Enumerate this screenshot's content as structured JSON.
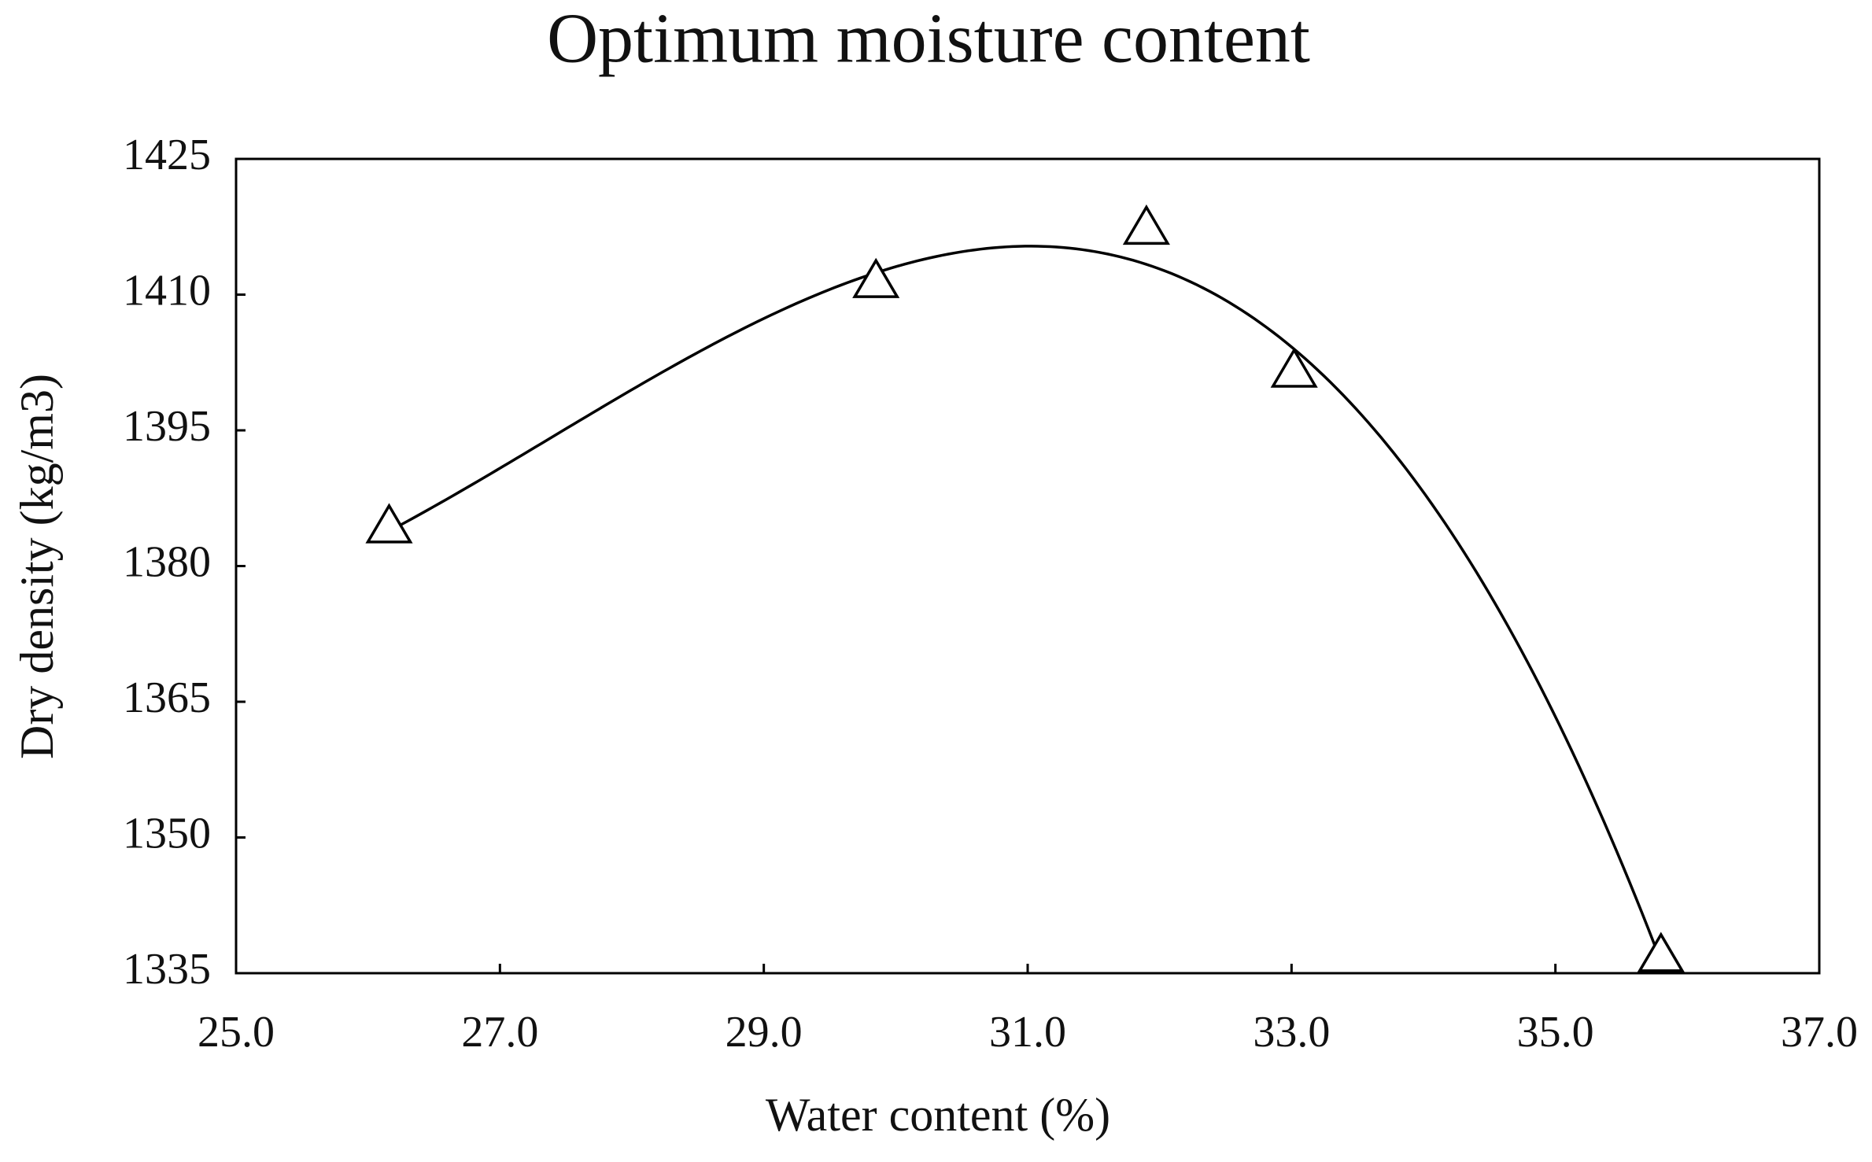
{
  "chart_data": {
    "type": "scatter",
    "title": "Optimum moisture content",
    "x_label": "Water content (%)",
    "y_label": "Dry density (kg/m3)",
    "series": [
      {
        "marker": "triangle-open",
        "color": "#000000",
        "x": [
          26.16,
          29.85,
          31.9,
          33.02,
          35.8
        ],
        "values": [
          1384,
          1411.1,
          1417,
          1401.2,
          1336.6
        ]
      }
    ],
    "trendline": {
      "type": "polynomial",
      "order": 3,
      "color": "#000000"
    },
    "xlim": [
      25,
      37
    ],
    "xticks": [
      {
        "value": 25,
        "label": "25.0"
      },
      {
        "value": 27,
        "label": "27.0"
      },
      {
        "value": 29,
        "label": "29.0"
      },
      {
        "value": 31,
        "label": "31.0"
      },
      {
        "value": 33,
        "label": "33.0"
      },
      {
        "value": 35,
        "label": "35.0"
      },
      {
        "value": 37,
        "label": "37.0"
      }
    ],
    "ylim": [
      1335,
      1425
    ],
    "yticks": [
      1335,
      1350,
      1365,
      1380,
      1395,
      1410,
      1425
    ],
    "grid": false
  }
}
